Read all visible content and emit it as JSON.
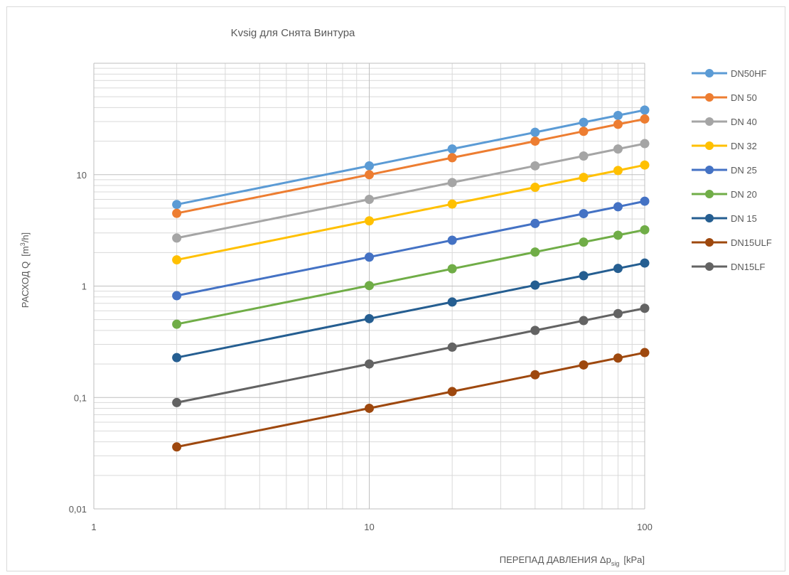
{
  "chart_data": {
    "type": "line",
    "title": "Kvsig для Снята Винтура",
    "xlabel": "ПЕРЕПАД ДАВЛЕНИЯ Δp",
    "xlabel_sub": "sig",
    "xlabel_unit": "[kPa]",
    "ylabel": "РАСХОД Q",
    "ylabel_unit_pre": "[m",
    "ylabel_unit_sup": "3",
    "ylabel_unit_post": "/h]",
    "x_scale": "log",
    "y_scale": "log",
    "xlim": [
      1,
      100
    ],
    "ylim": [
      0.01,
      100
    ],
    "x_tick_labels": [
      "1",
      "10",
      "100"
    ],
    "y_tick_labels": [
      "0,01",
      "0,1",
      "1",
      "10"
    ],
    "grid": true,
    "legend_position": "right",
    "x": [
      2,
      10,
      20,
      40,
      60,
      80,
      100
    ],
    "series": [
      {
        "name": "DN50HF",
        "color": "#5B9BD5",
        "values": [
          5.4,
          12.0,
          17.0,
          24.0,
          29.5,
          34.0,
          38.0
        ]
      },
      {
        "name": "DN 50",
        "color": "#ED7D31",
        "values": [
          4.5,
          10.0,
          14.2,
          20.0,
          24.5,
          28.3,
          31.6
        ]
      },
      {
        "name": "DN 40",
        "color": "#A5A5A5",
        "values": [
          2.7,
          6.0,
          8.5,
          12.0,
          14.7,
          17.0,
          19.0
        ]
      },
      {
        "name": "DN 32",
        "color": "#FFC000",
        "values": [
          1.72,
          3.85,
          5.45,
          7.7,
          9.45,
          10.9,
          12.2
        ]
      },
      {
        "name": "DN 25",
        "color": "#4472C4",
        "values": [
          0.82,
          1.82,
          2.58,
          3.65,
          4.47,
          5.15,
          5.78
        ]
      },
      {
        "name": "DN 20",
        "color": "#70AD47",
        "values": [
          0.455,
          1.01,
          1.43,
          2.02,
          2.48,
          2.86,
          3.2
        ]
      },
      {
        "name": "DN 15",
        "color": "#255E91",
        "values": [
          0.228,
          0.51,
          0.72,
          1.02,
          1.24,
          1.44,
          1.61
        ]
      },
      {
        "name": "DN15ULF",
        "color": "#9E480E",
        "values": [
          0.036,
          0.08,
          0.113,
          0.16,
          0.196,
          0.226,
          0.253
        ]
      },
      {
        "name": "DN15LF",
        "color": "#636363",
        "values": [
          0.09,
          0.2,
          0.283,
          0.4,
          0.49,
          0.566,
          0.632
        ]
      }
    ]
  }
}
